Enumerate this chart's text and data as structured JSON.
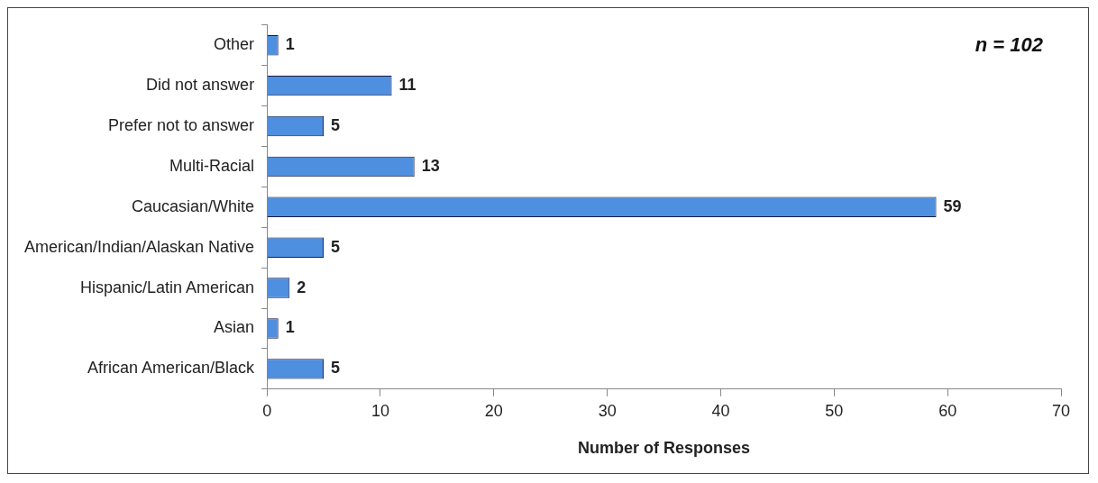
{
  "chart_data": {
    "type": "bar",
    "orientation": "horizontal",
    "xlabel": "Number of Responses",
    "categories": [
      "Other",
      "Did not answer",
      "Prefer not to answer",
      "Multi-Racial",
      "Caucasian/White",
      "American/Indian/Alaskan Native",
      "Hispanic/Latin American",
      "Asian",
      "African American/Black"
    ],
    "values": [
      1,
      11,
      5,
      13,
      59,
      5,
      2,
      1,
      5
    ],
    "color": "#4f8fdf",
    "xlim": [
      0,
      70
    ],
    "xticks": [
      0,
      10,
      20,
      30,
      40,
      50,
      60,
      70
    ],
    "data_labels": true,
    "grid": false,
    "legend": false,
    "annotations": [
      "n = 102"
    ]
  }
}
